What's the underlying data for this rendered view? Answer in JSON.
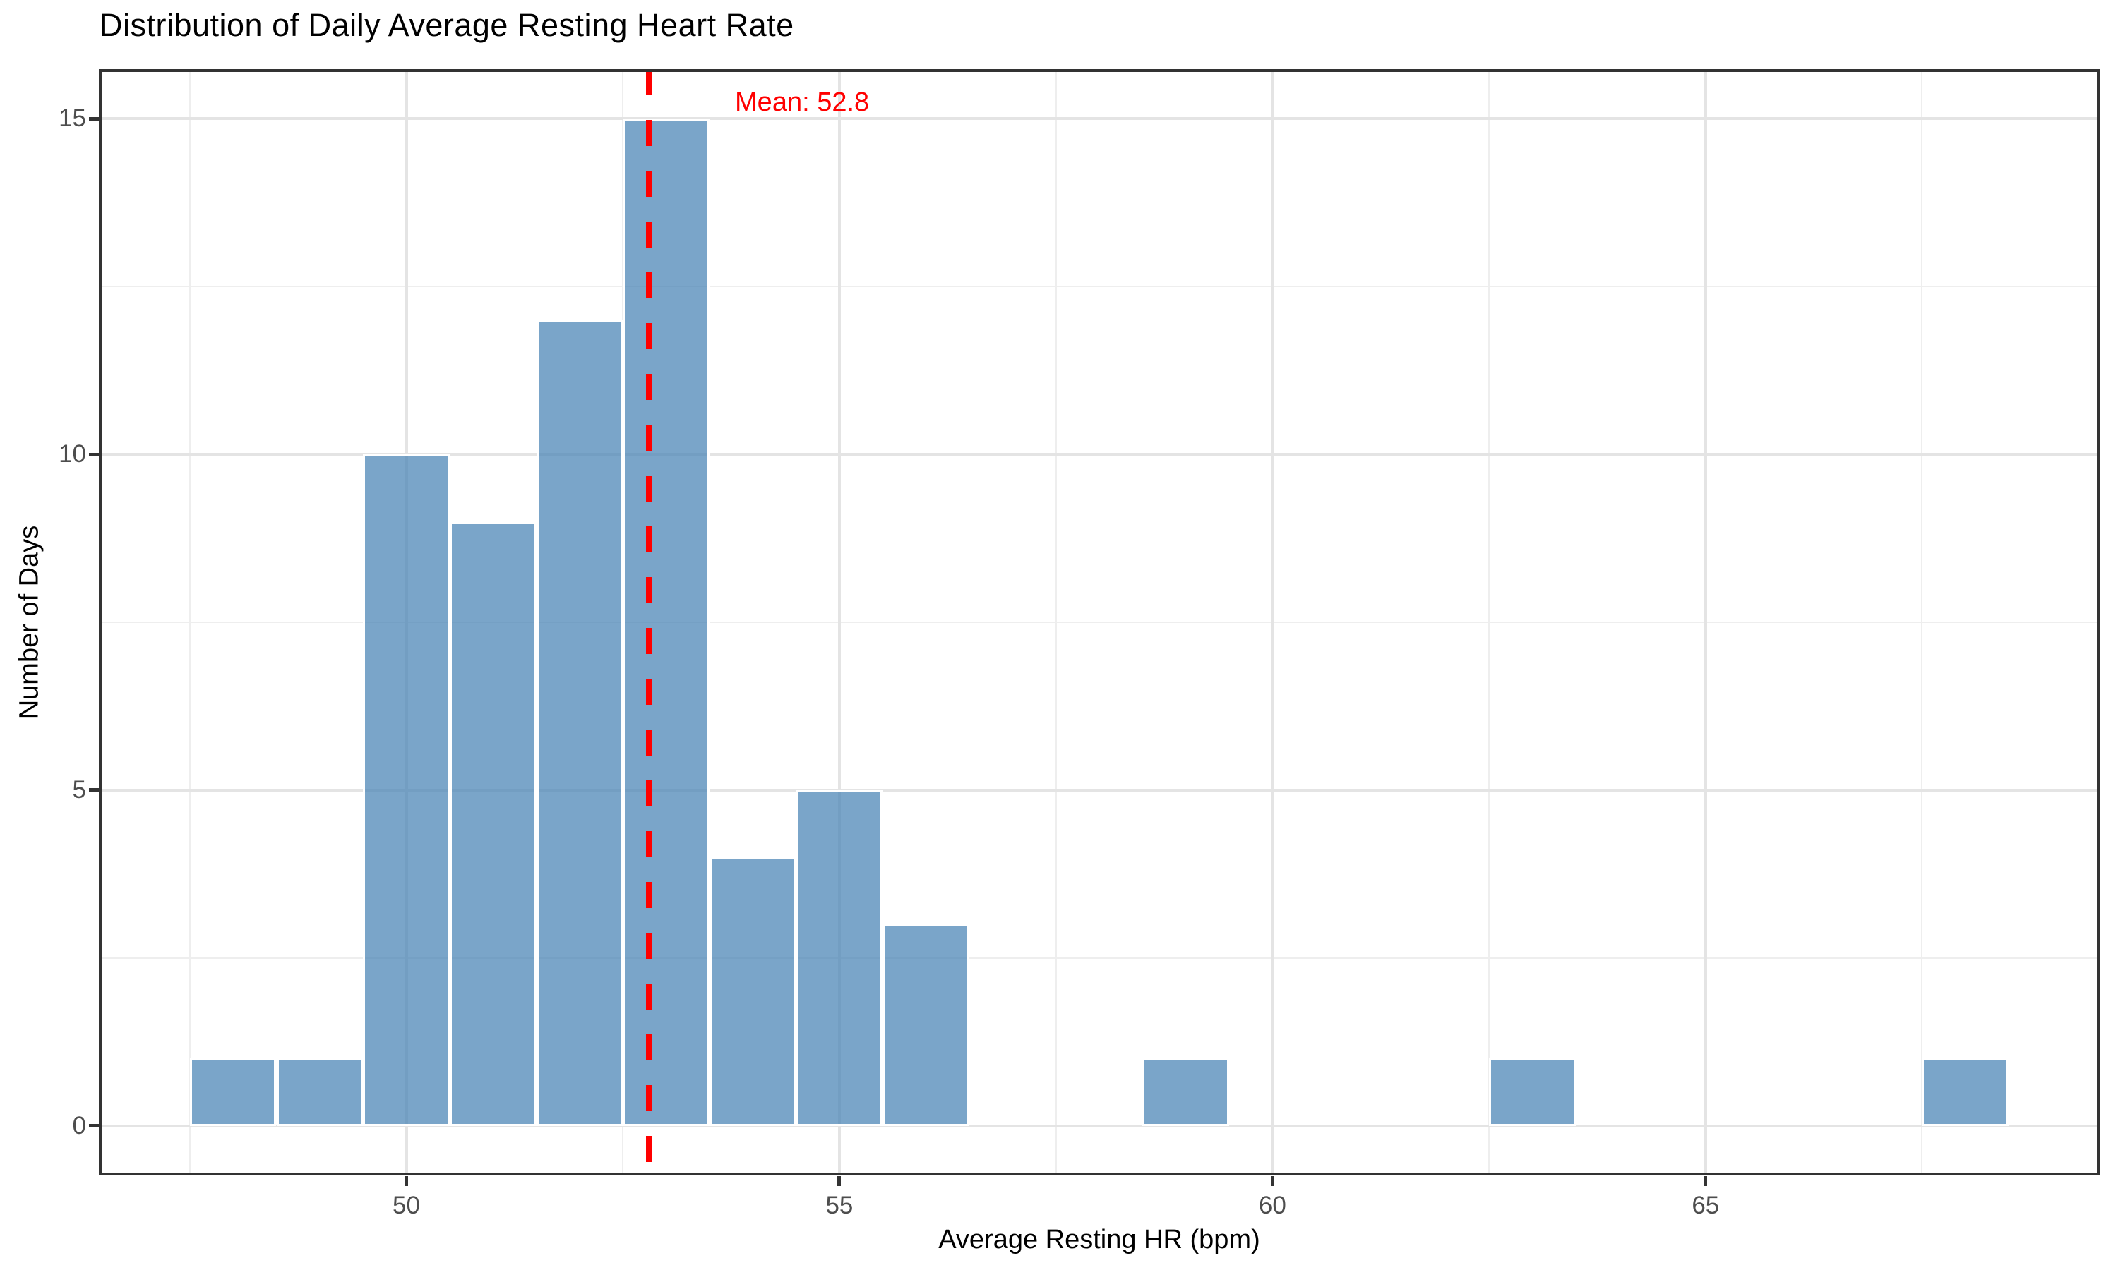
{
  "chart_data": {
    "type": "bar",
    "subtype": "histogram",
    "title": "Distribution of Daily Average Resting Heart Rate",
    "xlabel": "Average Resting HR (bpm)",
    "ylabel": "Number of Days",
    "bins": [
      {
        "bin_start": 47.5,
        "bin_end": 48.5,
        "count": 1
      },
      {
        "bin_start": 48.5,
        "bin_end": 49.5,
        "count": 1
      },
      {
        "bin_start": 49.5,
        "bin_end": 50.5,
        "count": 10
      },
      {
        "bin_start": 50.5,
        "bin_end": 51.5,
        "count": 9
      },
      {
        "bin_start": 51.5,
        "bin_end": 52.5,
        "count": 12
      },
      {
        "bin_start": 52.5,
        "bin_end": 53.5,
        "count": 15
      },
      {
        "bin_start": 53.5,
        "bin_end": 54.5,
        "count": 4
      },
      {
        "bin_start": 54.5,
        "bin_end": 55.5,
        "count": 5
      },
      {
        "bin_start": 55.5,
        "bin_end": 56.5,
        "count": 3
      },
      {
        "bin_start": 58.5,
        "bin_end": 59.5,
        "count": 1
      },
      {
        "bin_start": 62.5,
        "bin_end": 63.5,
        "count": 1
      },
      {
        "bin_start": 67.5,
        "bin_end": 68.5,
        "count": 1
      }
    ],
    "mean": 52.8,
    "mean_label": "Mean: 52.8",
    "x_ticks": [
      50,
      55,
      60,
      65
    ],
    "y_ticks": [
      0,
      5,
      10,
      15
    ],
    "x_minor": [
      47.5,
      52.5,
      57.5,
      62.5,
      67.5
    ],
    "y_minor": [
      2.5,
      7.5,
      12.5
    ],
    "xlim": [
      46.45,
      69.55
    ],
    "ylim": [
      -0.74,
      15.74
    ],
    "grid": true,
    "legend": false,
    "colors": {
      "bar_fill": "rgba(70,130,180,0.72)",
      "bar_stroke": "#FFFFFF",
      "mean_line": "#FF0000",
      "grid_major": "#E4E4E4",
      "grid_minor": "#EEEEEE",
      "panel_border": "#333333",
      "tick_mark": "#333333",
      "tick_label": "#4D4D4D",
      "title_text": "#000000"
    }
  }
}
